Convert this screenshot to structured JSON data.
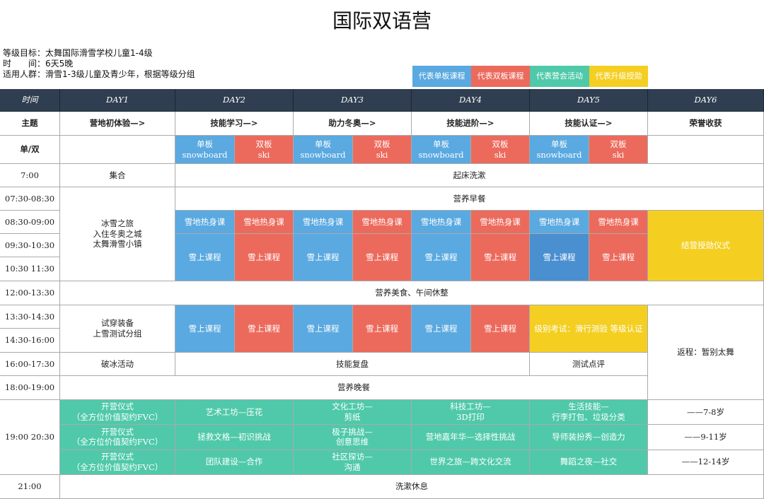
{
  "title": "国际双语营",
  "info": [
    "等级目标：太舞国际滑雪学校儿童1-4级",
    "时　　间：6天5晚",
    "适用人群：滑雪1-3级儿童及青少年，根据等级分组"
  ],
  "legend": [
    "代表单板课程",
    "代表双板课程",
    "代表营会活动",
    "代表升级授勋"
  ],
  "header": [
    "时间",
    "DAY1",
    "DAY2",
    "DAY3",
    "DAY4",
    "DAY5",
    "DAY6"
  ],
  "theme": {
    "label": "主题",
    "days": [
      "营地初体验—>",
      "技能学习—>",
      "助力冬奥—>",
      "技能进阶—>",
      "技能认证—>",
      "荣誉收获"
    ]
  },
  "board": {
    "label": "单/双",
    "pairs": [
      [
        "单板\nsnowboard",
        "双板\nski"
      ],
      [
        "单板\nsnowboard",
        "双板\nski"
      ],
      [
        "单板\nsnowboard",
        "双板\nski"
      ],
      [
        "单板\nsnowboard",
        "双板\nski"
      ]
    ]
  },
  "times": [
    "7:00",
    "07:30-08:30",
    "08:30-09:00",
    "09:30-10:30",
    "10:30 11:30",
    "12:00-13:30",
    "13:30-14:30",
    "14:30-16:00",
    "16:00-17:30",
    "18:00-19:00",
    "19:00 20:30",
    "21:00"
  ],
  "day1": [
    "集合",
    "冰雪之旅\n入住冬奥之城\n太舞滑雪小镇",
    "试穿装备\n上雪测试分组",
    "破冰活动"
  ],
  "spans": {
    "wake": "起床洗漱",
    "breakfast": "营养早餐",
    "lunch": "营养美食、午间休整",
    "review": "技能复盘",
    "test": "测试点评",
    "dinner": "营养晚餐",
    "rest": "洗漱休息"
  },
  "morning": {
    "warmup": [
      [
        "雪地热身课",
        "雪地热身课"
      ],
      [
        "雪地热身课",
        "雪地热身课"
      ],
      [
        "雪地热身课",
        "雪地热身课"
      ],
      [
        "雪地热身课",
        "雪地热身课"
      ]
    ],
    "course": [
      [
        "雪上课程",
        "雪上课程"
      ],
      [
        "雪上课程",
        "雪上课程"
      ],
      [
        "雪上课程",
        "雪上课程"
      ],
      [
        "雪上课程",
        "雪上课程"
      ]
    ]
  },
  "afternoon": {
    "course": [
      [
        "雪上课程",
        "雪上课程"
      ],
      [
        "雪上课程",
        "雪上课程"
      ],
      [
        "雪上课程",
        "雪上课程"
      ]
    ],
    "exam": "级别考试：滑行测验 等级认证"
  },
  "day6": {
    "award": "结营授勋仪式",
    "return": "返程：暂别太舞"
  },
  "evening": [
    [
      "开营仪式\n（全方位价值契约FVC）",
      "艺术工坊—压花",
      "文化工坊—\n剪纸",
      "科技工坊—\n3D打印",
      "生活技能—\n行李打包、垃圾分类",
      "——7-8岁"
    ],
    [
      "开营仪式\n（全方位价值契约FVC）",
      "拯救文格—初识挑战",
      "极子挑战—\n创意思维",
      "营地嘉年华—选择性挑战",
      "导师装扮秀—创造力",
      "——9-11岁"
    ],
    [
      "开营仪式\n（全方位价值契约FVC）",
      "团队建设—合作",
      "社区探访—\n沟通",
      "世界之旅—跨文化交流",
      "舞蹈之夜—社交",
      "——12-14岁"
    ]
  ]
}
